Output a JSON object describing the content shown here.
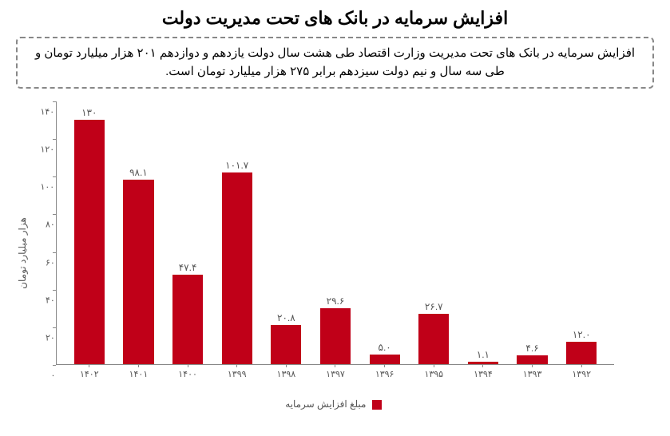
{
  "title": {
    "text": "افزایش سرمایه در بانک های تحت مدیریت دولت",
    "fontsize": 22,
    "color": "#000000"
  },
  "subtitle": {
    "text": "افزایش سرمایه در بانک های تحت مدیریت وزارت اقتصاد طی هشت سال دولت یازدهم و دوازدهم ۲۰۱ هزار میلیارد تومان و طی سه سال و نیم دولت سیزدهم برابر ۲۷۵ هزار میلیارد تومان است.",
    "fontsize": 15
  },
  "chart": {
    "type": "bar",
    "categories": [
      "۱۳۹۲",
      "۱۳۹۳",
      "۱۳۹۴",
      "۱۳۹۵",
      "۱۳۹۶",
      "۱۳۹۷",
      "۱۳۹۸",
      "۱۳۹۹",
      "۱۴۰۰",
      "۱۴۰۱",
      "۱۴۰۲"
    ],
    "values": [
      12.0,
      4.6,
      1.1,
      26.7,
      5.0,
      29.6,
      20.8,
      101.7,
      47.4,
      98.1,
      130
    ],
    "value_labels": [
      "۱۲.۰",
      "۴.۶",
      "۱.۱",
      "۲۶.۷",
      "۵.۰",
      "۲۹.۶",
      "۲۰.۸",
      "۱۰۱.۷",
      "۴۷.۴",
      "۹۸.۱",
      "۱۳۰"
    ],
    "bar_color": "#c00018",
    "ylim": [
      0,
      140
    ],
    "yticks": [
      0,
      20,
      40,
      60,
      80,
      100,
      120,
      140
    ],
    "ytick_labels": [
      "۰",
      "۲۰",
      "۴۰",
      "۶۰",
      "۸۰",
      "۱۰۰",
      "۱۲۰",
      "۱۴۰"
    ],
    "ylabel": "هزار میلیارد تومان",
    "ylabel_fontsize": 12,
    "legend_label": "مبلغ افزایش سرمایه",
    "legend_fontsize": 12,
    "value_label_fontsize": 12,
    "xtick_fontsize": 11,
    "background_color": "#ffffff",
    "axis_color": "#888888",
    "text_color": "#555555",
    "bar_width": 0.62
  }
}
